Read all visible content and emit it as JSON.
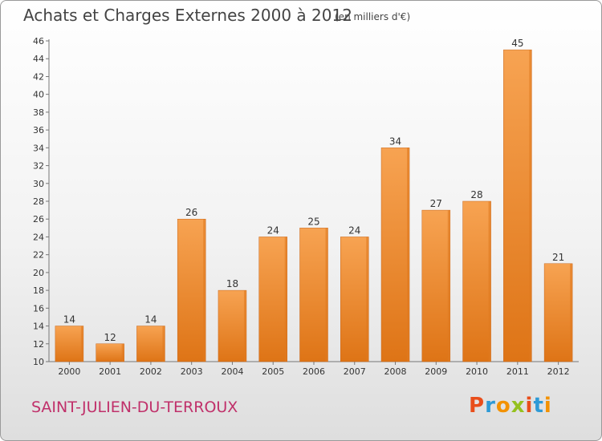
{
  "chart_data": {
    "type": "bar",
    "title": "Achats et Charges Externes 2000 à 2012",
    "subtitle": "(en milliers d'€)",
    "categories": [
      "2000",
      "2001",
      "2002",
      "2003",
      "2004",
      "2005",
      "2006",
      "2007",
      "2008",
      "2009",
      "2010",
      "2011",
      "2012"
    ],
    "values": [
      14,
      12,
      14,
      26,
      18,
      24,
      25,
      24,
      34,
      27,
      28,
      45,
      21
    ],
    "ylim": [
      10,
      46
    ],
    "yticks": [
      10,
      12,
      14,
      16,
      18,
      20,
      22,
      24,
      26,
      28,
      30,
      32,
      34,
      36,
      38,
      40,
      42,
      44,
      46
    ],
    "xlabel": "",
    "ylabel": "",
    "grid": false,
    "bar_color": "#f0913a"
  },
  "footer": {
    "place_name": "SAINT-JULIEN-DU-TERROUX",
    "brand": "Proxiti"
  },
  "colors": {
    "place_name": "#c0306a",
    "brand_letters": [
      "#e94e1b",
      "#2e9ad6",
      "#f39200",
      "#95c11f",
      "#e94e1b",
      "#2e9ad6",
      "#f39200"
    ]
  }
}
